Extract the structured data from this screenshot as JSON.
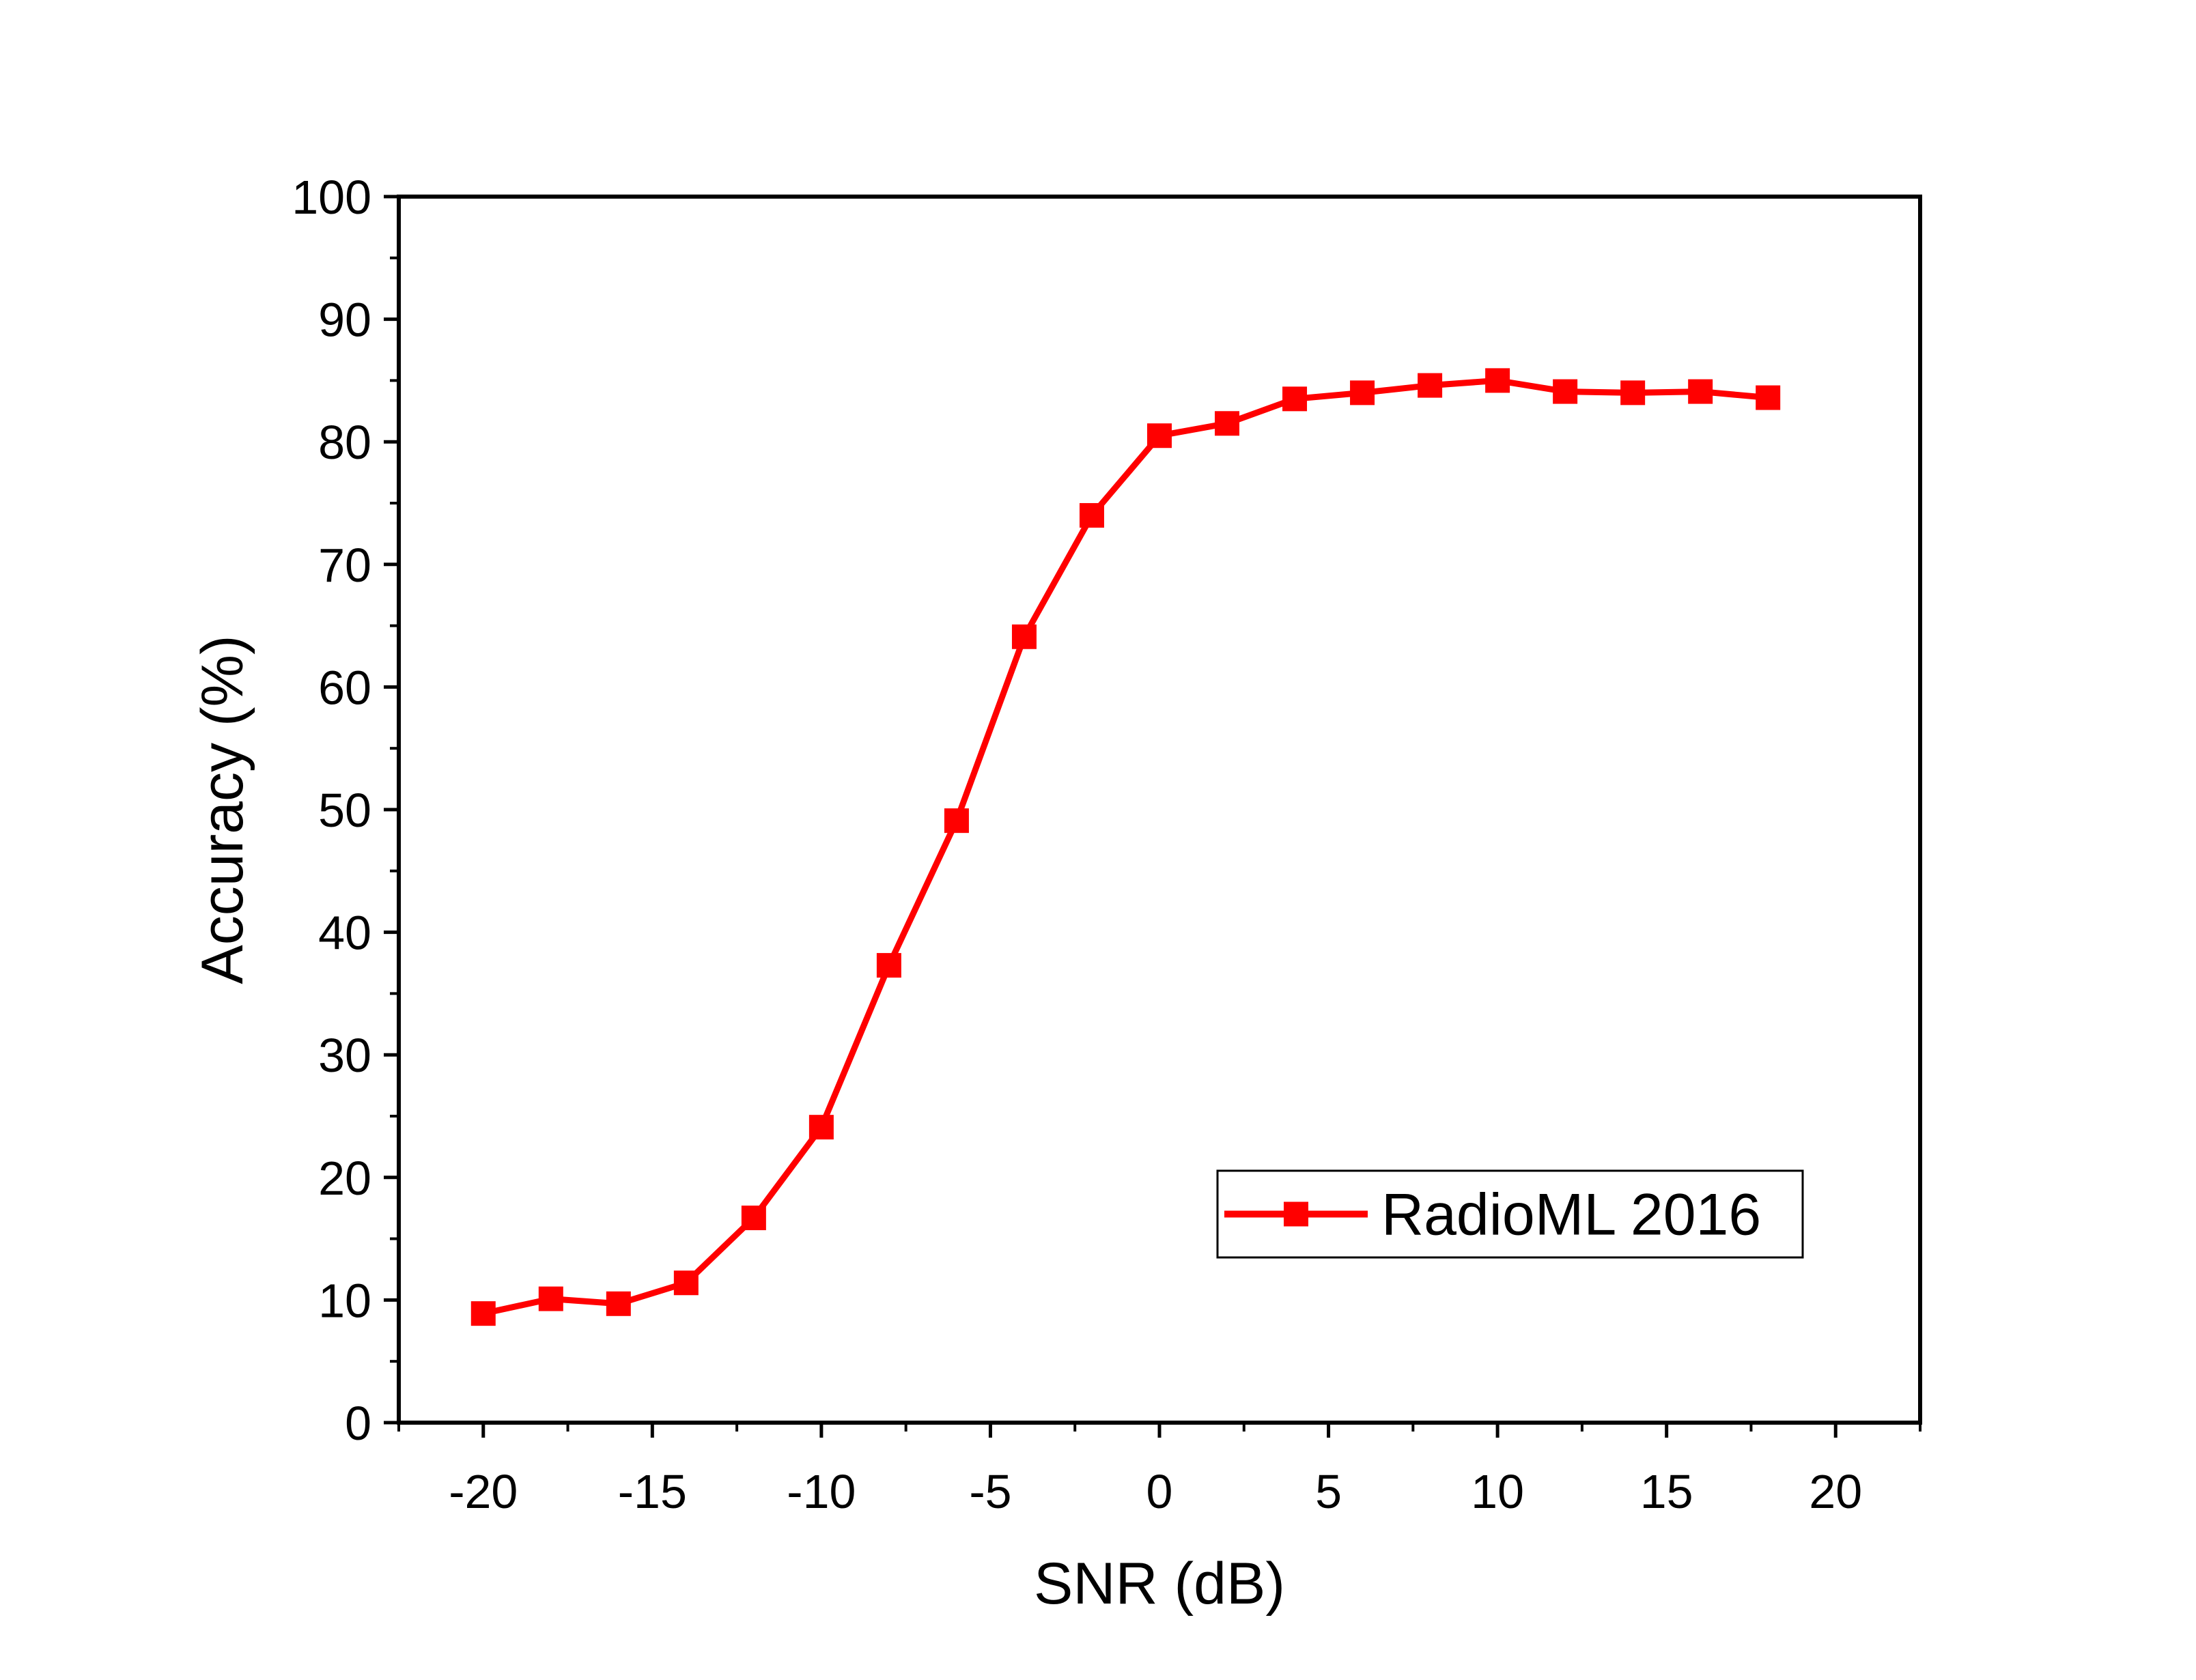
{
  "chart_data": {
    "type": "line",
    "title": "",
    "xlabel": "SNR (dB)",
    "ylabel": "Accuracy (%)",
    "xlim": [
      -22.5,
      22.5
    ],
    "ylim": [
      0,
      100
    ],
    "x_ticks": [
      -20,
      -15,
      -10,
      -5,
      0,
      5,
      10,
      15,
      20
    ],
    "x_tick_labels": [
      "-20",
      "-15",
      "-10",
      "-5",
      "0",
      "5",
      "10",
      "15",
      "20"
    ],
    "y_ticks": [
      0,
      10,
      20,
      30,
      40,
      50,
      60,
      70,
      80,
      90,
      100
    ],
    "y_tick_labels": [
      "0",
      "10",
      "20",
      "30",
      "40",
      "50",
      "60",
      "70",
      "80",
      "90",
      "100"
    ],
    "grid": false,
    "legend_position": "bottom-right",
    "series": [
      {
        "name": "RadioML 2016",
        "color": "#ff0000",
        "marker": "square",
        "x": [
          -20,
          -18,
          -16,
          -14,
          -12,
          -10,
          -8,
          -6,
          -4,
          -2,
          0,
          2,
          4,
          6,
          8,
          10,
          12,
          14,
          16,
          18
        ],
        "y": [
          8.9,
          10.1,
          9.7,
          11.4,
          16.7,
          24.1,
          37.3,
          49.1,
          64.1,
          74.0,
          80.5,
          81.5,
          83.5,
          84.0,
          84.6,
          85.0,
          84.1,
          84.0,
          84.1,
          83.6
        ]
      }
    ]
  }
}
